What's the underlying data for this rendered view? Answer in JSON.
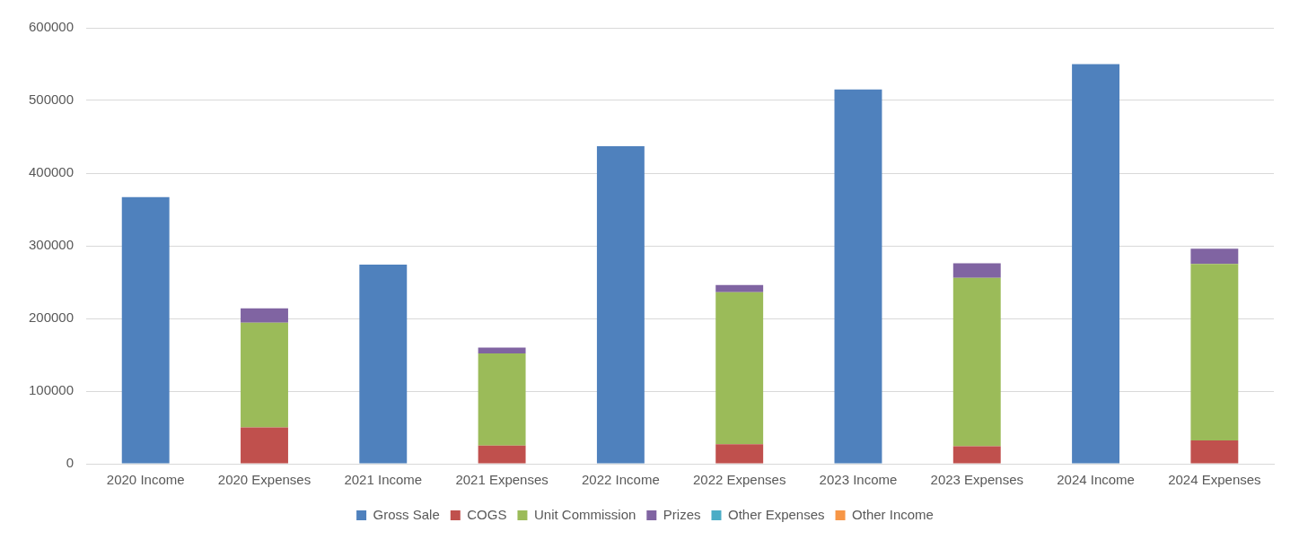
{
  "chart_data": {
    "type": "bar",
    "stacked": true,
    "categories": [
      "2020 Income",
      "2020 Expenses",
      "2021 Income",
      "2021 Expenses",
      "2022 Income",
      "2022 Expenses",
      "2023 Income",
      "2023 Expenses",
      "2024 Income",
      "2024 Expenses"
    ],
    "series": [
      {
        "name": "Gross Sale",
        "color": "#4f81bd",
        "values": [
          367000,
          null,
          274000,
          null,
          437000,
          null,
          515000,
          null,
          550000,
          null
        ]
      },
      {
        "name": "COGS",
        "color": "#c0504d",
        "values": [
          null,
          50000,
          null,
          25000,
          null,
          27000,
          null,
          24000,
          null,
          32000
        ]
      },
      {
        "name": "Unit Commission",
        "color": "#9bbb59",
        "values": [
          null,
          144000,
          null,
          127000,
          null,
          209000,
          null,
          232000,
          null,
          243000
        ]
      },
      {
        "name": "Prizes",
        "color": "#8064a2",
        "values": [
          null,
          20000,
          null,
          8000,
          null,
          10000,
          null,
          20000,
          null,
          21000
        ]
      },
      {
        "name": "Other Expenses",
        "color": "#4bacc6",
        "values": [
          null,
          0,
          null,
          0,
          null,
          0,
          null,
          0,
          null,
          0
        ]
      },
      {
        "name": "Other Income",
        "color": "#f79646",
        "values": [
          0,
          null,
          0,
          null,
          0,
          null,
          0,
          null,
          0,
          null
        ]
      }
    ],
    "ylim": [
      0,
      600000
    ],
    "yticks": [
      0,
      100000,
      200000,
      300000,
      400000,
      500000,
      600000
    ],
    "grid": "y",
    "legend": "bottom"
  }
}
